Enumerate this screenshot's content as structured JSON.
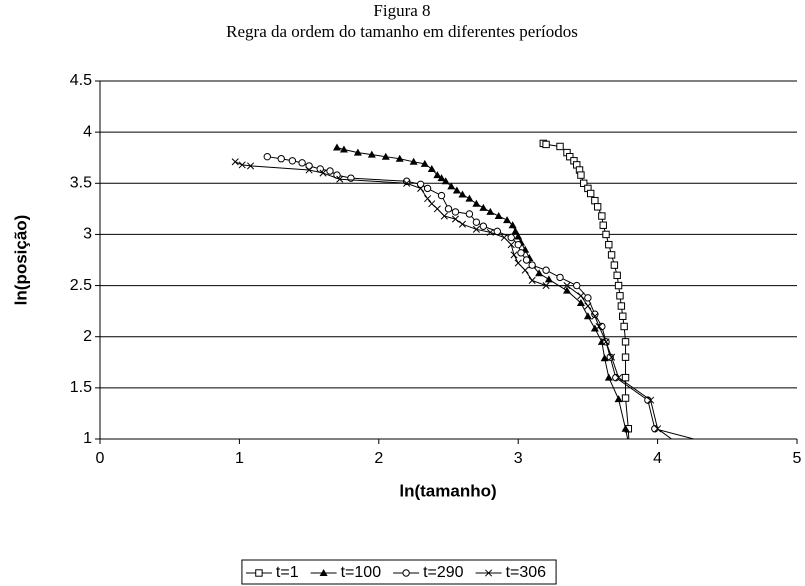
{
  "chart_data": {
    "type": "line",
    "title": "Figura 8",
    "subtitle": "Regra da ordem do tamanho em diferentes períodos",
    "x_label": "ln(tamanho)",
    "y_label": "ln(posição)",
    "xlim": [
      0,
      5
    ],
    "xticks": [
      0,
      1,
      2,
      3,
      4,
      5
    ],
    "ylim": [
      1,
      4.5
    ],
    "yticks": [
      1,
      1.5,
      2,
      2.5,
      3,
      3.5,
      4,
      4.5
    ],
    "grid": true,
    "legend": "bottom",
    "series": [
      {
        "name": "t=1",
        "color": "#000000",
        "marker": "square",
        "x": [
          3.18,
          3.2,
          3.3,
          3.35,
          3.37,
          3.4,
          3.42,
          3.44,
          3.45,
          3.47,
          3.5,
          3.52,
          3.55,
          3.57,
          3.6,
          3.61,
          3.63,
          3.65,
          3.67,
          3.69,
          3.71,
          3.72,
          3.73,
          3.74,
          3.75,
          3.76,
          3.77,
          3.77,
          3.77,
          3.77,
          3.79,
          3.8
        ],
        "values": [
          3.89,
          3.88,
          3.86,
          3.8,
          3.76,
          3.72,
          3.68,
          3.63,
          3.58,
          3.5,
          3.45,
          3.4,
          3.33,
          3.27,
          3.18,
          3.09,
          3.0,
          2.9,
          2.8,
          2.7,
          2.6,
          2.5,
          2.4,
          2.3,
          2.2,
          2.1,
          1.95,
          1.8,
          1.6,
          1.4,
          1.1,
          0.8
        ]
      },
      {
        "name": "t=100",
        "color": "#000000",
        "marker": "triangle",
        "x": [
          1.7,
          1.75,
          1.85,
          1.95,
          2.05,
          2.15,
          2.25,
          2.33,
          2.38,
          2.42,
          2.45,
          2.48,
          2.52,
          2.56,
          2.6,
          2.65,
          2.7,
          2.75,
          2.8,
          2.86,
          2.92,
          2.96,
          2.98,
          3.0,
          3.02,
          3.05,
          3.08,
          3.1,
          3.15,
          3.22,
          3.35,
          3.45,
          3.5,
          3.55,
          3.6,
          3.62,
          3.65,
          3.72,
          3.77,
          3.8
        ],
        "values": [
          3.85,
          3.83,
          3.8,
          3.78,
          3.76,
          3.74,
          3.71,
          3.69,
          3.64,
          3.58,
          3.55,
          3.52,
          3.47,
          3.43,
          3.39,
          3.35,
          3.3,
          3.26,
          3.22,
          3.18,
          3.14,
          3.09,
          3.03,
          2.98,
          2.92,
          2.85,
          2.77,
          2.7,
          2.62,
          2.56,
          2.45,
          2.33,
          2.2,
          2.08,
          1.95,
          1.79,
          1.6,
          1.39,
          1.1,
          0.9
        ]
      },
      {
        "name": "t=290",
        "color": "#000000",
        "marker": "circle",
        "x": [
          1.2,
          1.3,
          1.38,
          1.45,
          1.5,
          1.58,
          1.65,
          1.7,
          1.8,
          2.2,
          2.3,
          2.35,
          2.45,
          2.5,
          2.55,
          2.65,
          2.7,
          2.75,
          2.85,
          2.95,
          3.0,
          3.02,
          3.06,
          3.1,
          3.2,
          3.3,
          3.42,
          3.5,
          3.55,
          3.6,
          3.63,
          3.66,
          3.7,
          3.93,
          3.98,
          4.4
        ],
        "values": [
          3.76,
          3.74,
          3.72,
          3.7,
          3.67,
          3.64,
          3.62,
          3.58,
          3.55,
          3.52,
          3.49,
          3.45,
          3.38,
          3.25,
          3.22,
          3.2,
          3.12,
          3.08,
          3.03,
          2.97,
          2.9,
          2.82,
          2.75,
          2.7,
          2.65,
          2.58,
          2.5,
          2.38,
          2.22,
          2.1,
          1.95,
          1.8,
          1.6,
          1.38,
          1.1,
          0.95
        ]
      },
      {
        "name": "t=306",
        "color": "#000000",
        "marker": "cross",
        "x": [
          0.97,
          1.02,
          1.08,
          1.5,
          1.6,
          1.72,
          2.2,
          2.3,
          2.35,
          2.38,
          2.42,
          2.47,
          2.55,
          2.6,
          2.7,
          2.8,
          2.9,
          2.95,
          2.97,
          3.0,
          3.05,
          3.1,
          3.2,
          3.35,
          3.45,
          3.5,
          3.55,
          3.58,
          3.63,
          3.67,
          3.72,
          3.95,
          4.0,
          4.15
        ],
        "values": [
          3.71,
          3.68,
          3.67,
          3.63,
          3.6,
          3.54,
          3.5,
          3.45,
          3.35,
          3.3,
          3.25,
          3.18,
          3.15,
          3.1,
          3.05,
          3.02,
          2.97,
          2.9,
          2.8,
          2.72,
          2.65,
          2.55,
          2.5,
          2.5,
          2.4,
          2.3,
          2.2,
          2.1,
          1.95,
          1.8,
          1.6,
          1.38,
          1.1,
          0.95
        ]
      }
    ]
  }
}
